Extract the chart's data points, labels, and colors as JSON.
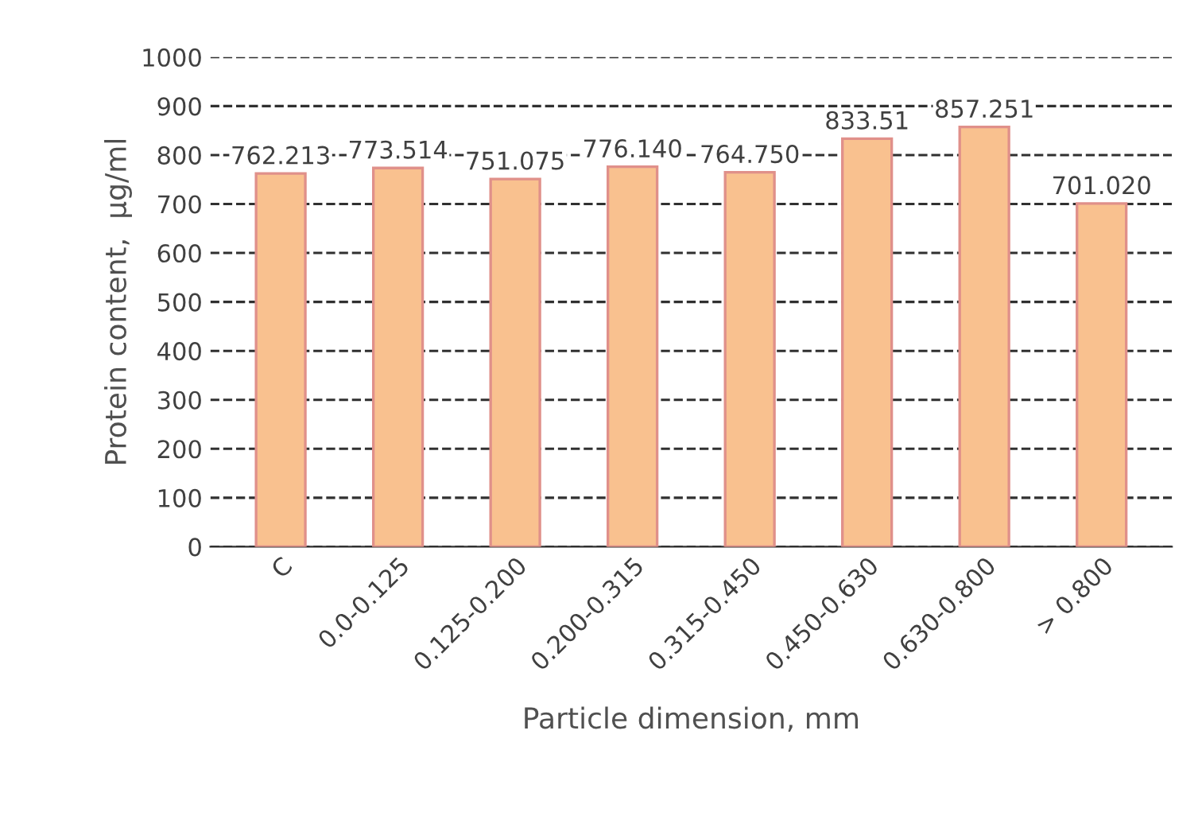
{
  "chart_data": {
    "type": "bar",
    "xlabel": "Particle dimension, mm",
    "ylabel": "Protein content,  µg/ml",
    "categories": [
      "C",
      "0.0-0.125",
      "0.125-0.200",
      "0.200-0.315",
      "0.315-0.450",
      "0.450-0.630",
      "0.630-0.800",
      "> 0.800"
    ],
    "values": [
      762.213,
      773.514,
      751.075,
      776.14,
      764.75,
      833.51,
      857.251,
      701.02
    ],
    "value_labels": [
      "762.213",
      "773.514",
      "751.075",
      "776.140",
      "764.750",
      "833.51",
      "857.251",
      "701.020"
    ],
    "color": "#f9c18f",
    "ylim": [
      0,
      1000
    ],
    "yticks": [
      0,
      100,
      200,
      300,
      400,
      500,
      600,
      700,
      800,
      900,
      1000
    ],
    "grid": "y",
    "legend": false
  }
}
